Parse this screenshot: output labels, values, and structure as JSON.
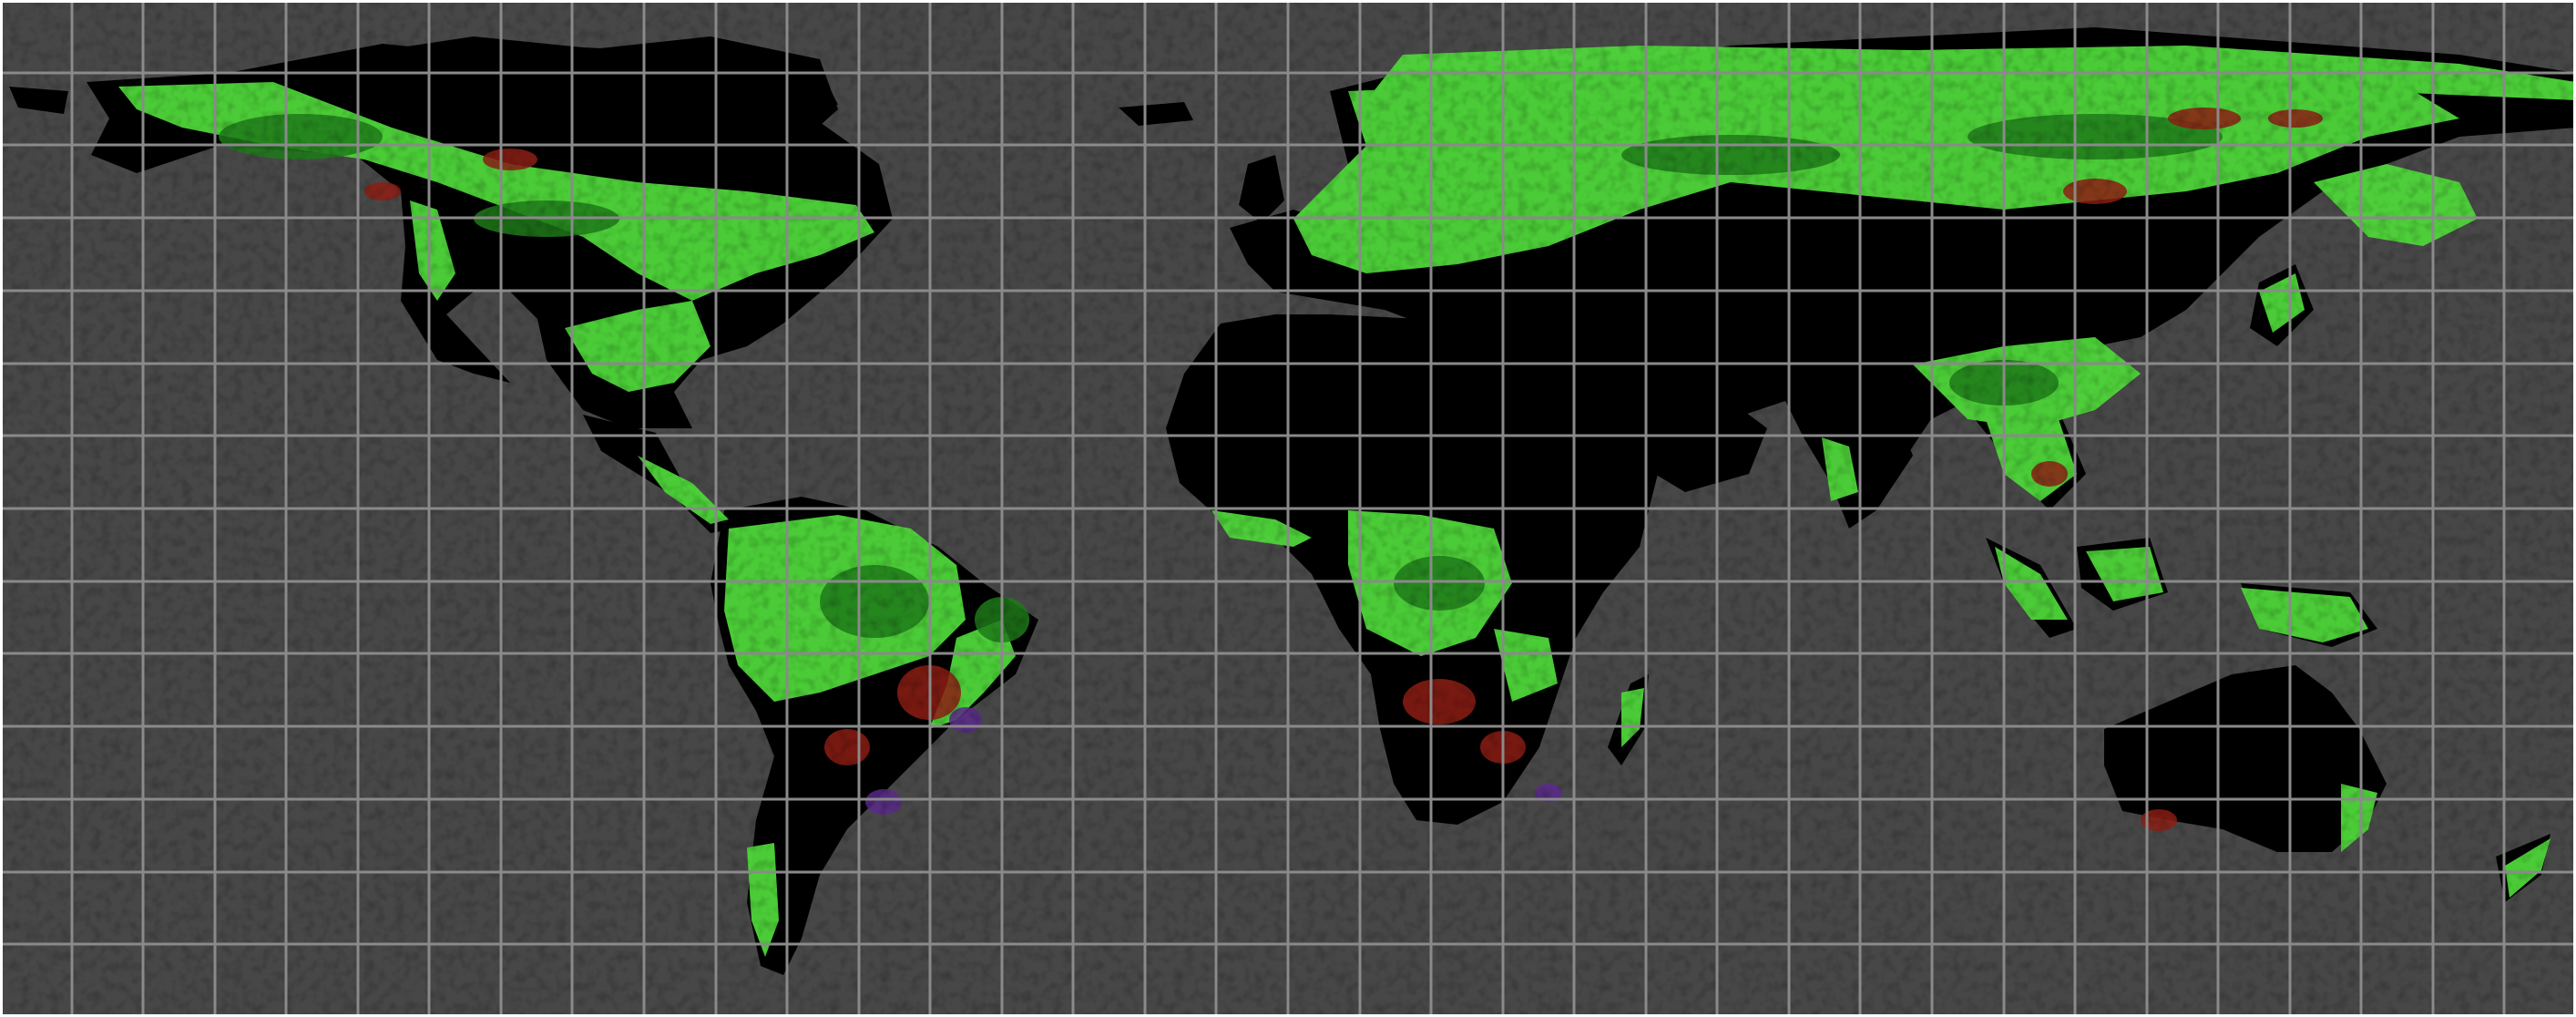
{
  "map": {
    "projection": "equirectangular",
    "colors": {
      "ocean": "#474747",
      "land": "#000000",
      "grid": "#8a8a8a",
      "forest": "#4fd63a",
      "forest_dark": "#1f7a1a",
      "disturbance_red": "#8c1e14",
      "disturbance_purple": "#5a2a8a",
      "border": "#ffffff"
    },
    "grid": {
      "visible": true,
      "columns": 36,
      "rows": 14
    }
  }
}
